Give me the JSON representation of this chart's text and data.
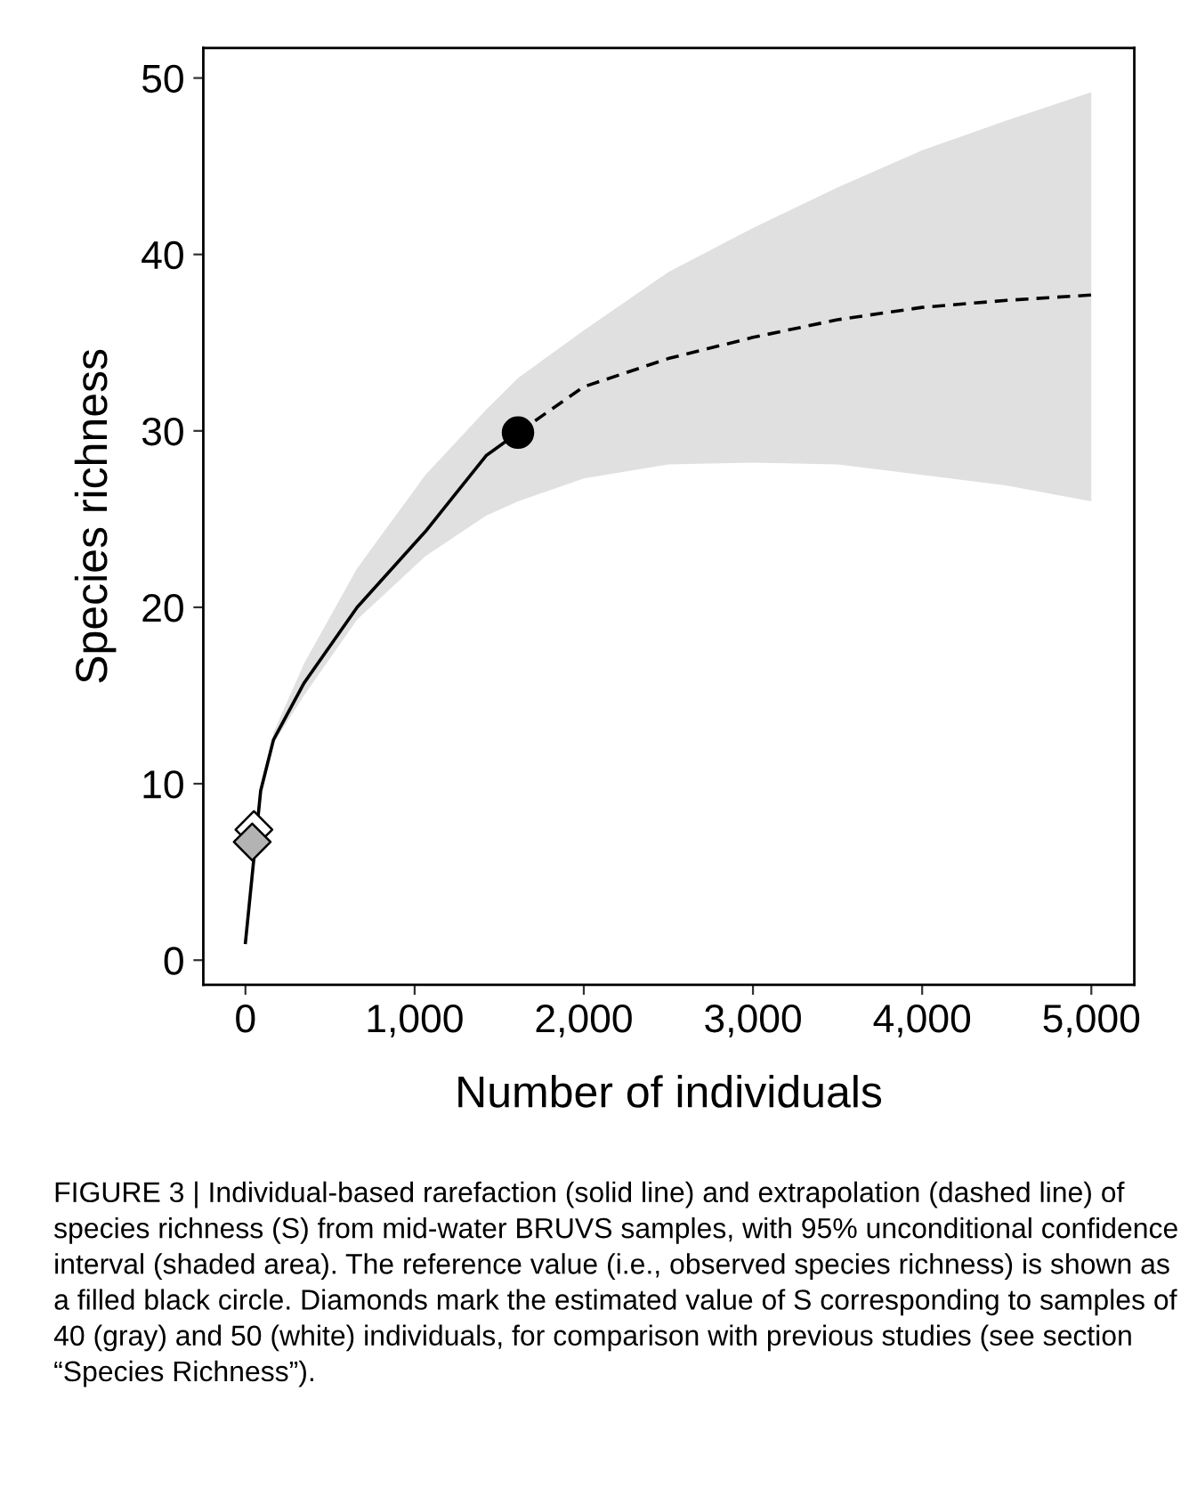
{
  "chart_data": {
    "type": "line",
    "xlabel": "Number of individuals",
    "ylabel": "Species richness",
    "xlim": [
      -249,
      5254
    ],
    "xticks": [
      {
        "value": 0,
        "label": "0"
      },
      {
        "value": 1000,
        "label": "1,000"
      },
      {
        "value": 2000,
        "label": "2,000"
      },
      {
        "value": 3000,
        "label": "3,000"
      },
      {
        "value": 4000,
        "label": "4,000"
      },
      {
        "value": 5000,
        "label": "5,000"
      }
    ],
    "ylim": [
      -1.4,
      51.7
    ],
    "yticks": [
      0,
      10,
      20,
      30,
      40,
      50
    ],
    "grid": false,
    "legend": false,
    "series": [
      {
        "line_style": "solid",
        "color": "#000000",
        "x": [
          0,
          90,
          166,
          346,
          660,
          1064,
          1423,
          1611
        ],
        "values": [
          1,
          9.6,
          12.5,
          15.7,
          20,
          24.3,
          28.6,
          29.9
        ],
        "lower": [
          null,
          null,
          12.3,
          15.0,
          19.3,
          22.9,
          25.2,
          26.0
        ],
        "upper": [
          null,
          null,
          12.9,
          16.8,
          22.2,
          27.5,
          31.2,
          33.0
        ]
      },
      {
        "line_style": "dashed",
        "color": "#000000",
        "x": [
          1611,
          2000,
          2500,
          3000,
          3500,
          4000,
          4500,
          5000
        ],
        "values": [
          29.9,
          32.5,
          34.1,
          35.3,
          36.3,
          37.0,
          37.4,
          37.7
        ],
        "lower": [
          26.0,
          27.3,
          28.1,
          28.2,
          28.1,
          27.5,
          26.9,
          26.0
        ],
        "upper": [
          33.0,
          35.7,
          39.0,
          41.5,
          43.8,
          45.9,
          47.6,
          49.2
        ]
      },
      {
        "type": "scatter",
        "marker": "circle",
        "x": [
          1611
        ],
        "values": [
          29.9
        ],
        "colors": [
          "#000000"
        ]
      },
      {
        "type": "scatter",
        "marker": "diamond",
        "x": [
          50,
          40
        ],
        "values": [
          7.4,
          6.7
        ],
        "colors": [
          "#ffffff",
          "#b3b3b3"
        ]
      }
    ],
    "annotations": [
      "FIGURE 3 | Individual-based rarefaction (solid line) and extrapolation (dashed line) of species richness (S) from mid-water BRUVS samples, with 95% unconditional confidence interval (shaded area). The reference value (i.e., observed species richness) is shown as a filled black circle. Diamonds mark the estimated value of S corresponding to samples of 40 (gray) and 50 (white) individuals, for comparison with previous studies (see section “Species Richness”)."
    ]
  }
}
